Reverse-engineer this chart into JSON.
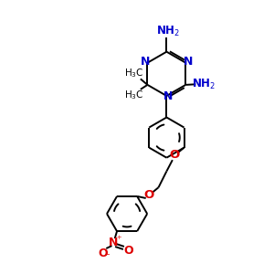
{
  "bg_color": "#ffffff",
  "bond_color": "#000000",
  "N_color": "#0000cc",
  "O_color": "#dd0000",
  "line_width": 1.4,
  "figsize": [
    3.0,
    3.0
  ],
  "dpi": 100,
  "xlim": [
    0,
    10
  ],
  "ylim": [
    0,
    10
  ]
}
